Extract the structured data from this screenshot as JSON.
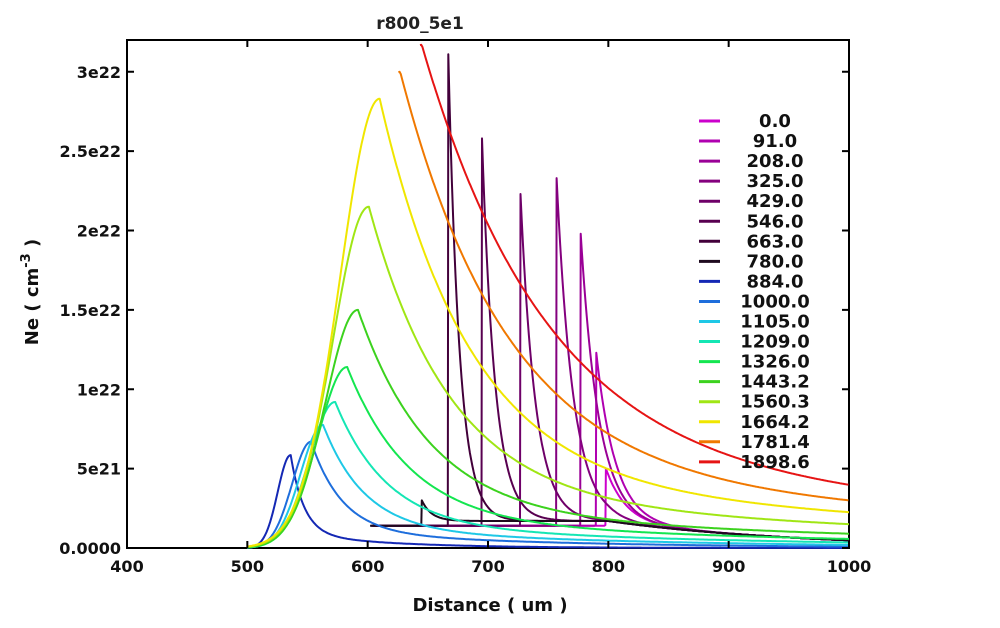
{
  "chart_data": {
    "type": "line",
    "title": "r800_5e1",
    "xlabel": "Distance ( um )",
    "ylabel": "Ne ( cm",
    "ylabel_sup": "-3",
    "ylabel_close": " )",
    "xlim": [
      400,
      1000
    ],
    "ylim": [
      0,
      3.2e+22
    ],
    "x_ticks": [
      {
        "value": 400,
        "label": "400"
      },
      {
        "value": 500,
        "label": "500"
      },
      {
        "value": 600,
        "label": "600"
      },
      {
        "value": 700,
        "label": "700"
      },
      {
        "value": 800,
        "label": "800"
      },
      {
        "value": 900,
        "label": "900"
      },
      {
        "value": 1000,
        "label": "1000"
      }
    ],
    "y_ticks": [
      {
        "value": 0,
        "label": "0.0000"
      },
      {
        "value": 5e+21,
        "label": "5e21"
      },
      {
        "value": 1e+22,
        "label": "1e22"
      },
      {
        "value": 1.5e+22,
        "label": "1.5e22"
      },
      {
        "value": 2e+22,
        "label": "2e22"
      },
      {
        "value": 2.5e+22,
        "label": "2.5e22"
      },
      {
        "value": 3e+22,
        "label": "3e22"
      }
    ],
    "grid": false,
    "legend_position": "right",
    "series": [
      {
        "name": "0.0",
        "color": "#cc00cc",
        "shape": "spike",
        "peak_x": 798,
        "peak_y": 5e+21
      },
      {
        "name": "91.0",
        "color": "#b000b0",
        "shape": "spike",
        "peak_x": 790,
        "peak_y": 1.23e+22
      },
      {
        "name": "208.0",
        "color": "#9a0096",
        "shape": "spike",
        "peak_x": 777,
        "peak_y": 1.98e+22
      },
      {
        "name": "325.0",
        "color": "#84007e",
        "shape": "spike",
        "peak_x": 757,
        "peak_y": 2.33e+22
      },
      {
        "name": "429.0",
        "color": "#6e0068",
        "shape": "spike",
        "peak_x": 727,
        "peak_y": 2.23e+22
      },
      {
        "name": "546.0",
        "color": "#580050",
        "shape": "spike",
        "peak_x": 695,
        "peak_y": 2.58e+22
      },
      {
        "name": "663.0",
        "color": "#42003a",
        "shape": "spike",
        "peak_x": 667,
        "peak_y": 3.11e+22
      },
      {
        "name": "780.0",
        "color": "#1e0a1e",
        "shape": "spike",
        "peak_x": 645,
        "peak_y": 3e+21
      },
      {
        "name": "884.0",
        "color": "#1428b4",
        "shape": "hump",
        "peak_x": 536,
        "peak_y": 5.85e+21
      },
      {
        "name": "1000.0",
        "color": "#1e6edc",
        "shape": "hump",
        "peak_x": 553,
        "peak_y": 6.7e+21
      },
      {
        "name": "1105.0",
        "color": "#1ec8e6",
        "shape": "hump",
        "peak_x": 563,
        "peak_y": 7.75e+21
      },
      {
        "name": "1209.0",
        "color": "#14e6b4",
        "shape": "hump",
        "peak_x": 573,
        "peak_y": 9.2e+21
      },
      {
        "name": "1326.0",
        "color": "#14e650",
        "shape": "hump",
        "peak_x": 583,
        "peak_y": 1.14e+22
      },
      {
        "name": "1443.2",
        "color": "#3cd21e",
        "shape": "hump",
        "peak_x": 592,
        "peak_y": 1.5e+22
      },
      {
        "name": "1560.3",
        "color": "#a0e614",
        "shape": "hump",
        "peak_x": 601,
        "peak_y": 2.15e+22
      },
      {
        "name": "1664.2",
        "color": "#f0e600",
        "shape": "hump",
        "peak_x": 610,
        "peak_y": 2.83e+22
      },
      {
        "name": "1781.4",
        "color": "#f07800",
        "shape": "hump",
        "peak_x": 627,
        "peak_y": 3e+22
      },
      {
        "name": "1898.6",
        "color": "#e61414",
        "shape": "hump",
        "peak_x": 645,
        "peak_y": 3.17e+22
      }
    ]
  }
}
